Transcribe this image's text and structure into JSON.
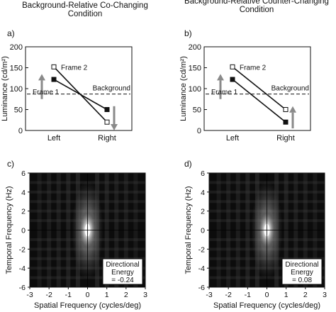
{
  "titles": {
    "left": [
      "Background-Relative Co-Changing",
      "Condition"
    ],
    "right": [
      "Background-Relative Counter-Changing",
      "Condition"
    ]
  },
  "panel_letters": [
    "a)",
    "b)",
    "c)",
    "d)"
  ],
  "chart_data": [
    {
      "panel": "a)",
      "type": "line",
      "ylabel": "Luminance (cd/m²)",
      "ylim": [
        0,
        200
      ],
      "yticks": [
        "0",
        "50",
        "100",
        "150",
        "200"
      ],
      "categories": [
        "Left",
        "Right"
      ],
      "background": {
        "label": "Background",
        "value": 87
      },
      "series": [
        {
          "name": "Frame 1",
          "values": [
            122,
            50
          ],
          "marker": "filled-square"
        },
        {
          "name": "Frame 2",
          "values": [
            152,
            20
          ],
          "marker": "open-square"
        }
      ],
      "arrows": [
        {
          "at": "Left",
          "direction": "up",
          "from": 75,
          "to": 135
        },
        {
          "at": "Right",
          "direction": "down",
          "from": 58,
          "to": 0
        }
      ]
    },
    {
      "panel": "b)",
      "type": "line",
      "ylabel": "Luminance (cd/m²)",
      "ylim": [
        0,
        200
      ],
      "yticks": [
        "0",
        "50",
        "100",
        "150",
        "200"
      ],
      "categories": [
        "Left",
        "Right"
      ],
      "background": {
        "label": "Background",
        "value": 87
      },
      "series": [
        {
          "name": "Frame 1",
          "values": [
            122,
            20
          ],
          "marker": "filled-square"
        },
        {
          "name": "Frame 2",
          "values": [
            152,
            50
          ],
          "marker": "open-square"
        }
      ],
      "arrows": [
        {
          "at": "Left",
          "direction": "up",
          "from": 75,
          "to": 135
        },
        {
          "at": "Right",
          "direction": "up",
          "from": 5,
          "to": 58
        }
      ]
    },
    {
      "panel": "c)",
      "type": "heatmap",
      "xlabel": "Spatial Frequency (cycles/deg)",
      "ylabel": "Temporal Frequency (Hz)",
      "xlim": [
        -3,
        3
      ],
      "ylim": [
        -6,
        6
      ],
      "xticks": [
        "-3",
        "-2",
        "-1",
        "0",
        "1",
        "2",
        "3"
      ],
      "yticks": [
        "-6",
        "-4",
        "-2",
        "0",
        "2",
        "4",
        "6"
      ],
      "annotation": [
        "Directional",
        "Energy",
        "= -0.24"
      ],
      "directional_energy": -0.24
    },
    {
      "panel": "d)",
      "type": "heatmap",
      "xlabel": "Spatial Frequency (cycles/deg)",
      "ylabel": "Temporal Frequency (Hz)",
      "xlim": [
        -3,
        3
      ],
      "ylim": [
        -6,
        6
      ],
      "xticks": [
        "-3",
        "-2",
        "-1",
        "0",
        "1",
        "2",
        "3"
      ],
      "yticks": [
        "-6",
        "-4",
        "-2",
        "0",
        "2",
        "4",
        "6"
      ],
      "annotation": [
        "Directional",
        "Energy",
        "= 0.08"
      ],
      "directional_energy": 0.08
    }
  ]
}
